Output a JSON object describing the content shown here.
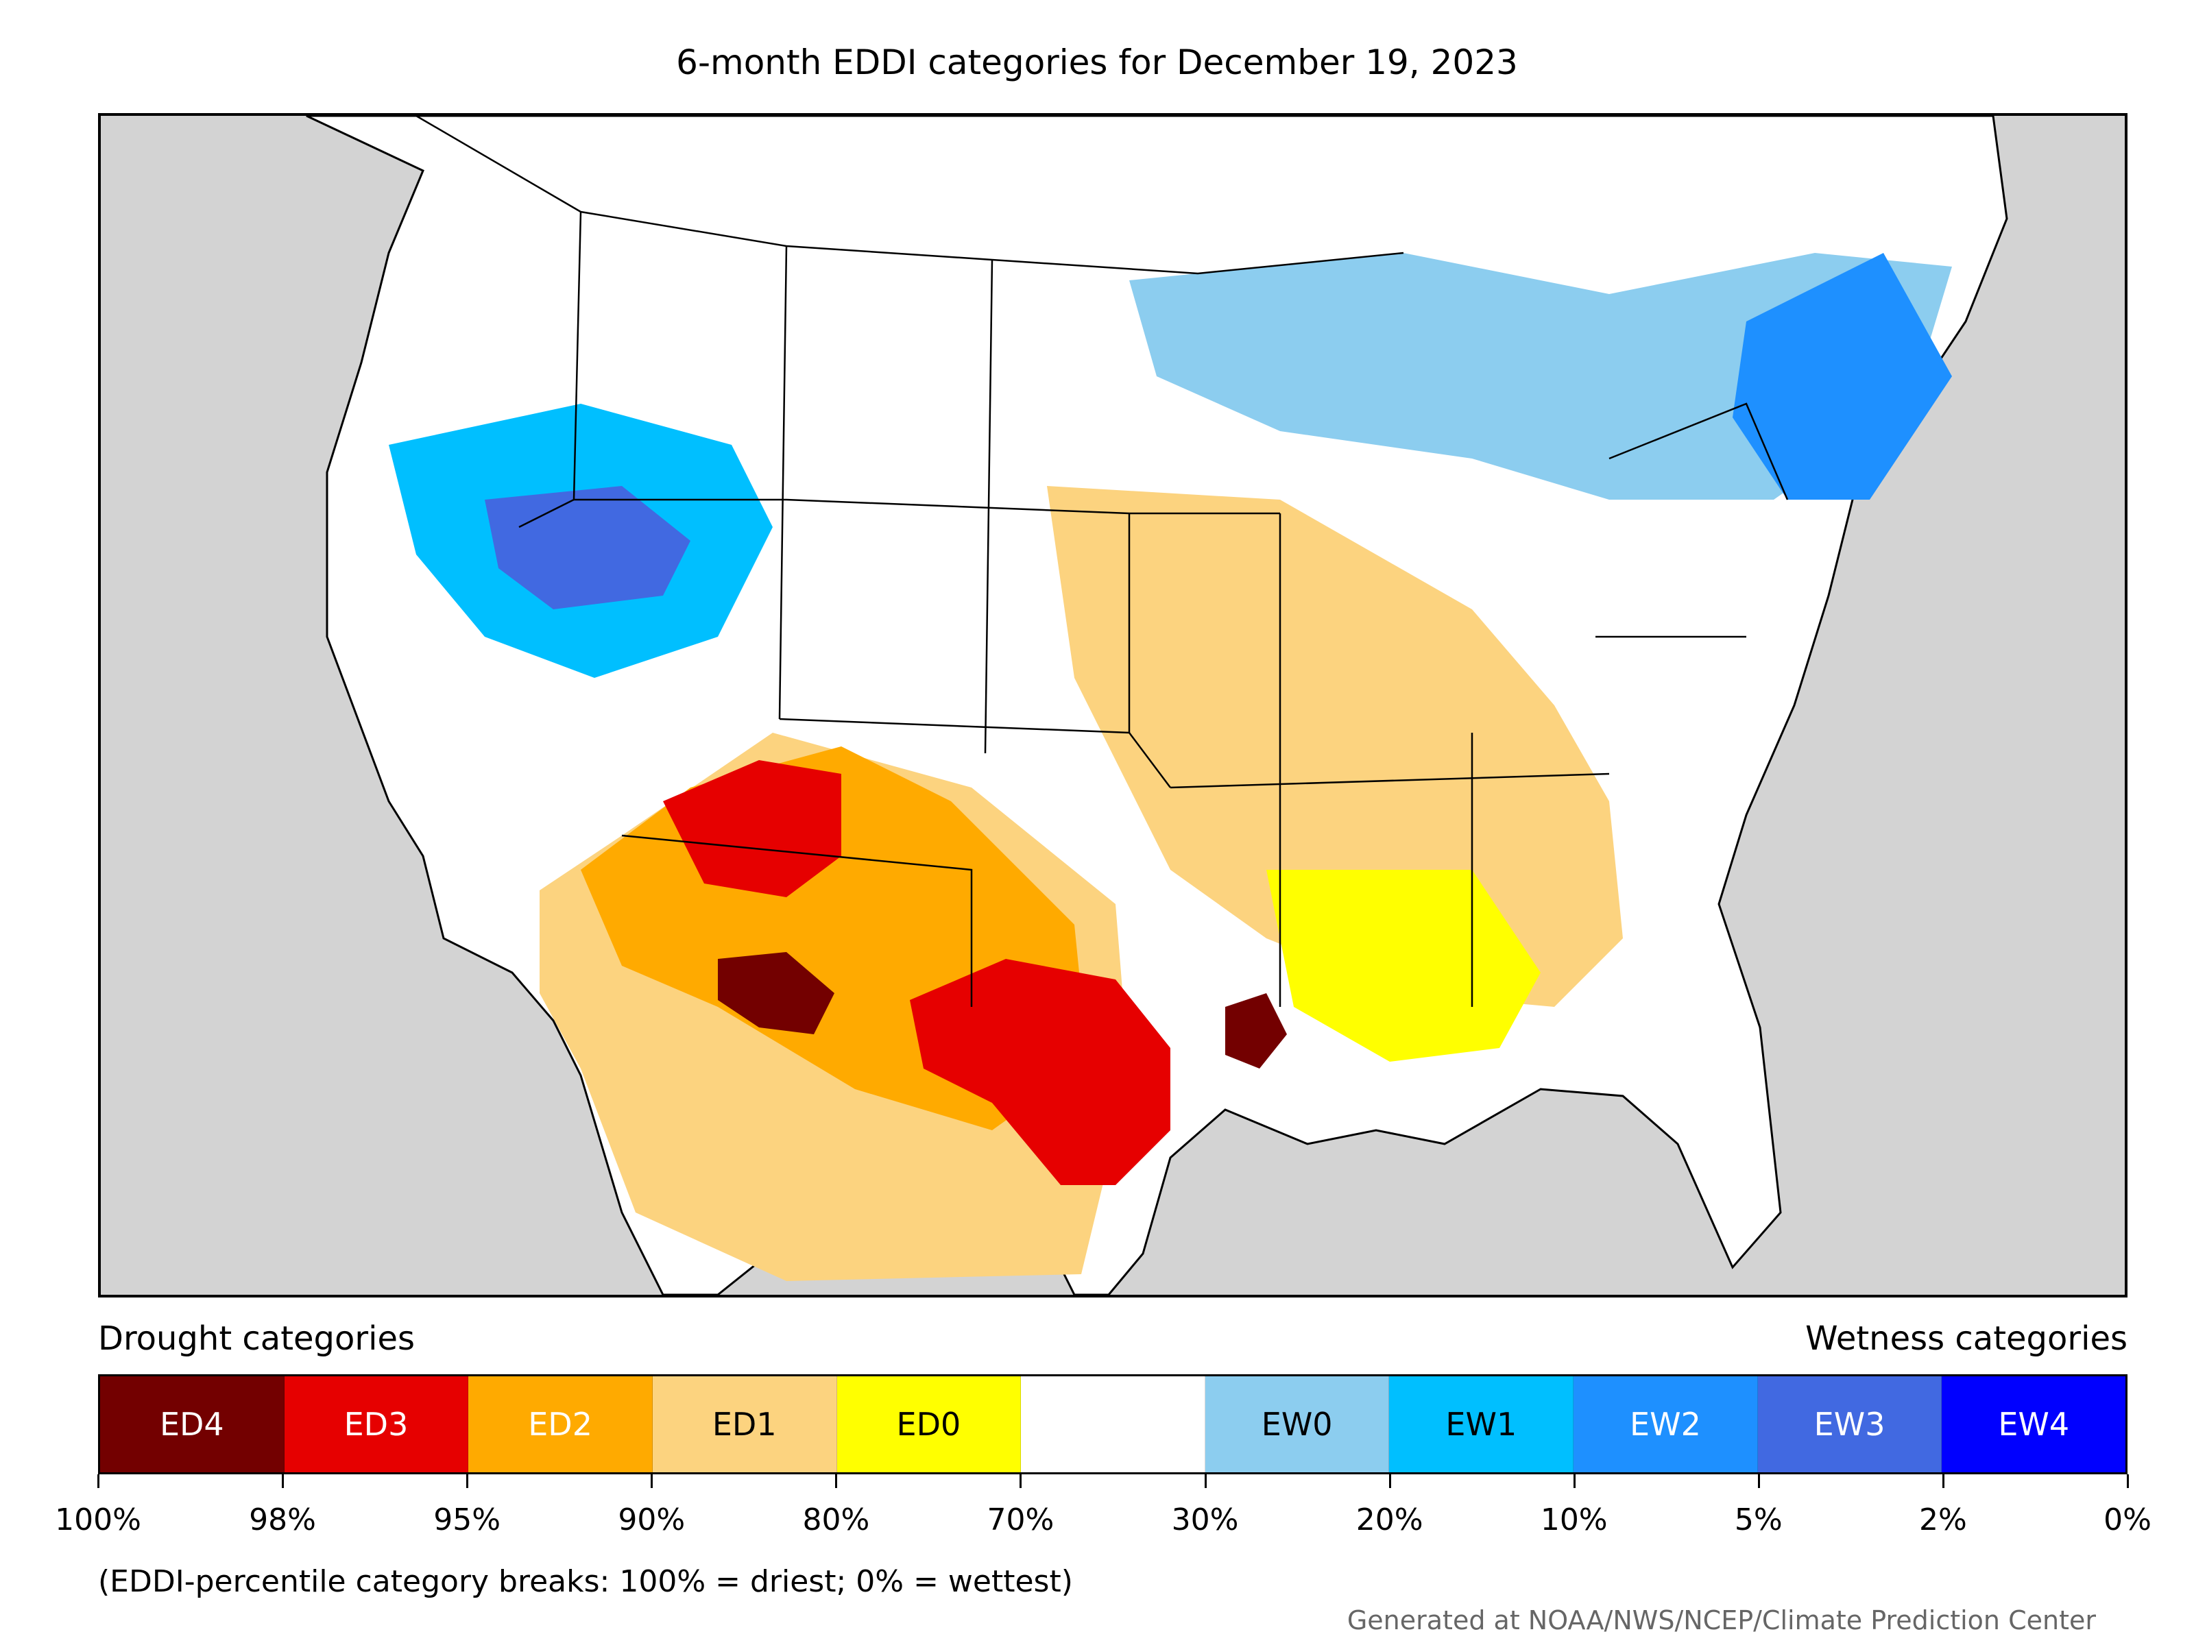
{
  "title": "6-month EDDI categories for December 19, 2023",
  "legend": {
    "drought_label": "Drought categories",
    "wetness_label": "Wetness categories",
    "categories": [
      {
        "code": "ED4",
        "color": "#730000",
        "text_color": "#ffffff"
      },
      {
        "code": "ED3",
        "color": "#e60000",
        "text_color": "#ffffff"
      },
      {
        "code": "ED2",
        "color": "#ffaa00",
        "text_color": "#ffffff"
      },
      {
        "code": "ED1",
        "color": "#fcd37f",
        "text_color": "#000000"
      },
      {
        "code": "ED0",
        "color": "#ffff00",
        "text_color": "#000000"
      },
      {
        "code": "",
        "color": "#ffffff",
        "text_color": "#000000"
      },
      {
        "code": "EW0",
        "color": "#8ccdef",
        "text_color": "#000000"
      },
      {
        "code": "EW1",
        "color": "#00bfff",
        "text_color": "#000000"
      },
      {
        "code": "EW2",
        "color": "#1e90ff",
        "text_color": "#ffffff"
      },
      {
        "code": "EW3",
        "color": "#4169e1",
        "text_color": "#ffffff"
      },
      {
        "code": "EW4",
        "color": "#0000ff",
        "text_color": "#ffffff"
      }
    ],
    "tick_labels": [
      "100%",
      "98%",
      "95%",
      "90%",
      "80%",
      "70%",
      "30%",
      "20%",
      "10%",
      "5%",
      "2%",
      "0%"
    ]
  },
  "note": "(EDDI-percentile category breaks: 100% = driest; 0% = wettest)",
  "credit": "Generated at NOAA/NWS/NCEP/Climate Prediction Center",
  "map": {
    "background_color": "#d3d3d3",
    "regions": [
      {
        "name": "texas-core",
        "category": "ED3"
      },
      {
        "name": "southwest-core",
        "category": "ED4"
      },
      {
        "name": "louisiana-core",
        "category": "ED4"
      },
      {
        "name": "great-basin-wet",
        "category": "EW3"
      },
      {
        "name": "new-england-wet",
        "category": "EW2"
      }
    ]
  }
}
